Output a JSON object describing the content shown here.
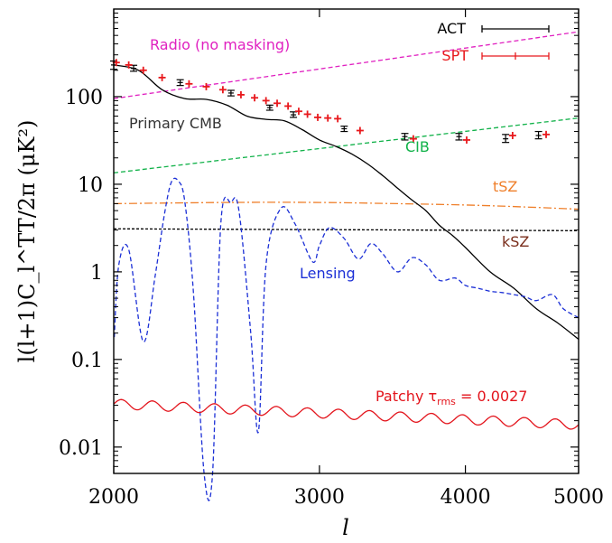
{
  "chart_data": {
    "type": "line",
    "xlabel": "l",
    "ylabel": "l(l+1)C_l^TT/2π (μK²)",
    "xscale": "log",
    "yscale": "log",
    "xlim": [
      2000,
      5000
    ],
    "ylim": [
      0.005,
      1000
    ],
    "x_ticks": [
      2000,
      3000,
      4000,
      5000
    ],
    "x_tick_labels": [
      "2000",
      "3000",
      "4000",
      "5000"
    ],
    "y_ticks": [
      0.01,
      0.1,
      1,
      10,
      100
    ],
    "y_tick_labels": [
      "0.01",
      "0.1",
      "1",
      "10",
      "100"
    ],
    "legend": {
      "position": "top-right",
      "entries": [
        "ACT",
        "SPT"
      ]
    },
    "colors": {
      "act": "#000000",
      "spt": "#e8191d",
      "radio": "#e020c0",
      "cib": "#12b24a",
      "tsz": "#ef7f2a",
      "ksz": "#000000",
      "primary": "#000000",
      "lensing": "#1b2fd6",
      "patchy": "#e3141c"
    },
    "series": [
      {
        "name": "Radio (no masking)",
        "color": "#e020c0",
        "style": "dashed",
        "x": [
          2000,
          5000
        ],
        "y": [
          95,
          550
        ]
      },
      {
        "name": "CIB",
        "color": "#12b24a",
        "style": "dashed",
        "x": [
          2000,
          5000
        ],
        "y": [
          13.5,
          57
        ]
      },
      {
        "name": "tSZ",
        "color": "#ef7f2a",
        "style": "dash-dot",
        "x": [
          2000,
          2500,
          3000,
          3500,
          4000,
          4500,
          5000
        ],
        "y": [
          6.0,
          6.2,
          6.2,
          6.0,
          5.8,
          5.5,
          5.2
        ]
      },
      {
        "name": "kSZ",
        "color": "#000000",
        "style": "dotted",
        "x": [
          2000,
          5000
        ],
        "y": [
          3.1,
          2.95
        ]
      },
      {
        "name": "Primary CMB",
        "color": "#000000",
        "style": "solid",
        "x": [
          2000,
          2100,
          2200,
          2300,
          2400,
          2500,
          2600,
          2700,
          2800,
          2900,
          3000,
          3100,
          3200,
          3300,
          3400,
          3500,
          3600,
          3700,
          3800,
          3900,
          4000,
          4200,
          4400,
          4600,
          4800,
          5000
        ],
        "y": [
          230,
          200,
          120,
          95,
          93,
          80,
          60,
          55,
          53,
          42,
          32,
          27,
          22,
          17,
          12.5,
          9.0,
          6.6,
          5.0,
          3.4,
          2.6,
          1.9,
          1.0,
          0.65,
          0.38,
          0.26,
          0.17
        ]
      },
      {
        "name": "Lensing",
        "color": "#1b2fd6",
        "style": "dashed",
        "x": [
          2002,
          2020,
          2060,
          2120,
          2170,
          2210,
          2240,
          2270,
          2300,
          2340,
          2390,
          2430,
          2470,
          2520,
          2560,
          2620,
          2660,
          2700,
          2780,
          2860,
          2960,
          3000,
          3060,
          3150,
          3240,
          3320,
          3400,
          3500,
          3600,
          3700,
          3800,
          3920,
          4000,
          4100,
          4200,
          4300,
          4400,
          4500,
          4600,
          4750,
          4850,
          5000
        ],
        "y": [
          0.18,
          1.2,
          1.8,
          0.16,
          0.9,
          4.5,
          10.5,
          11,
          6.5,
          0.6,
          0.005,
          0.005,
          3.5,
          6.2,
          5.0,
          0.2,
          0.015,
          1.2,
          5.3,
          3.5,
          1.3,
          2.0,
          3.2,
          2.4,
          1.4,
          2.1,
          1.6,
          1.0,
          1.45,
          1.2,
          0.8,
          0.85,
          0.7,
          0.65,
          0.6,
          0.58,
          0.55,
          0.52,
          0.47,
          0.55,
          0.38,
          0.3
        ]
      },
      {
        "name": "Patchy τrms = 0.0027",
        "color": "#e3141c",
        "style": "solid",
        "oscillating": {
          "amplitude_dex": 0.055,
          "cycles": 15,
          "base_start": 0.031,
          "base_end": 0.018
        },
        "x": [
          2000,
          5000
        ],
        "y": [
          0.031,
          0.018
        ]
      }
    ],
    "act_points": [
      {
        "x": 2000,
        "y": 230,
        "yerr": [
          205,
          255
        ]
      },
      {
        "x": 2080,
        "y": 210,
        "yerr": [
          195,
          228
        ]
      },
      {
        "x": 2280,
        "y": 145,
        "yerr": [
          134,
          156
        ]
      },
      {
        "x": 2520,
        "y": 110,
        "yerr": [
          102,
          118
        ]
      },
      {
        "x": 2720,
        "y": 75,
        "yerr": [
          70,
          80
        ]
      },
      {
        "x": 2850,
        "y": 62,
        "yerr": [
          58,
          67
        ]
      },
      {
        "x": 3150,
        "y": 43,
        "yerr": [
          40,
          46
        ]
      },
      {
        "x": 3550,
        "y": 35,
        "yerr": [
          32,
          38
        ]
      },
      {
        "x": 3950,
        "y": 35,
        "yerr": [
          32,
          38
        ]
      },
      {
        "x": 4330,
        "y": 33,
        "yerr": [
          30,
          37
        ]
      },
      {
        "x": 4620,
        "y": 36,
        "yerr": [
          33,
          40
        ]
      }
    ],
    "spt_points": [
      {
        "x": 2010,
        "y": 245
      },
      {
        "x": 2060,
        "y": 230
      },
      {
        "x": 2120,
        "y": 200
      },
      {
        "x": 2200,
        "y": 165
      },
      {
        "x": 2320,
        "y": 140
      },
      {
        "x": 2400,
        "y": 130
      },
      {
        "x": 2480,
        "y": 120
      },
      {
        "x": 2570,
        "y": 105
      },
      {
        "x": 2640,
        "y": 97
      },
      {
        "x": 2700,
        "y": 90
      },
      {
        "x": 2760,
        "y": 84
      },
      {
        "x": 2820,
        "y": 78
      },
      {
        "x": 2880,
        "y": 68
      },
      {
        "x": 2930,
        "y": 63
      },
      {
        "x": 2990,
        "y": 58
      },
      {
        "x": 3050,
        "y": 57
      },
      {
        "x": 3110,
        "y": 56
      },
      {
        "x": 3250,
        "y": 41
      },
      {
        "x": 3610,
        "y": 33
      },
      {
        "x": 4010,
        "y": 32
      },
      {
        "x": 4390,
        "y": 36
      },
      {
        "x": 4690,
        "y": 37
      }
    ],
    "labels": {
      "radio": "Radio (no masking)",
      "primary": "Primary CMB",
      "cib": "CIB",
      "tsz": "tSZ",
      "ksz": "kSZ",
      "lensing": "Lensing",
      "patchy": "Patchy τ",
      "patchy_sub": "rms",
      "patchy_value": " = 0.0027",
      "act": "ACT",
      "spt": "SPT"
    }
  }
}
